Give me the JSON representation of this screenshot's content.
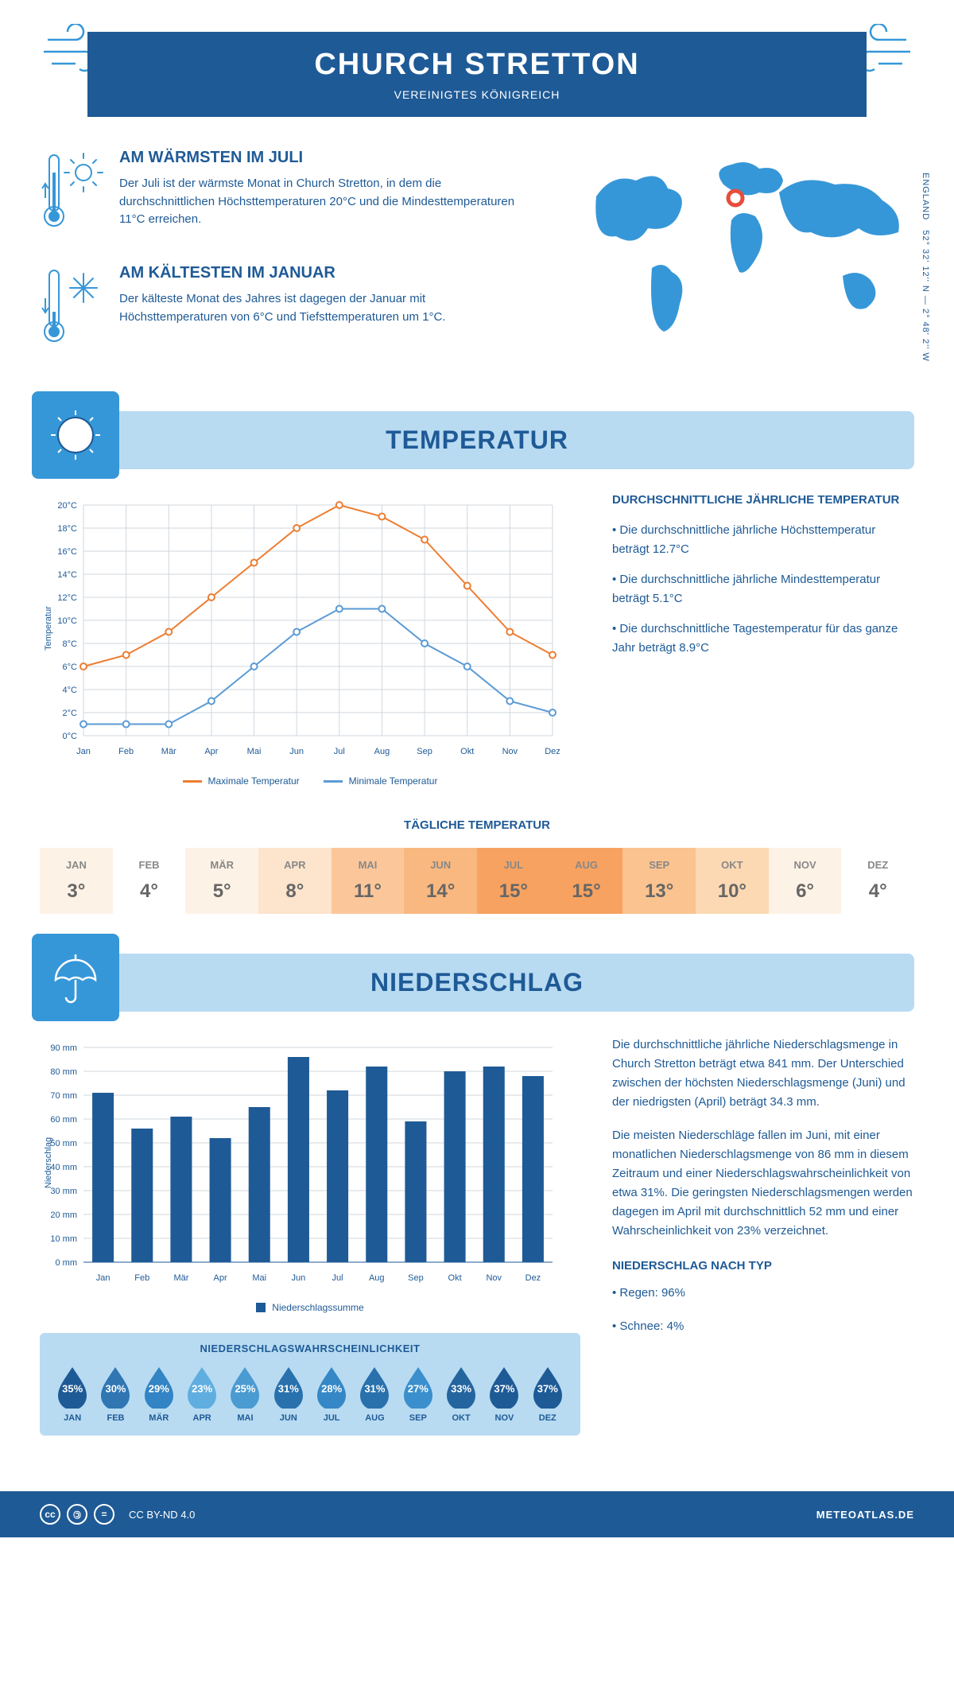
{
  "header": {
    "title": "CHURCH STRETTON",
    "subtitle": "VEREINIGTES KÖNIGREICH"
  },
  "coords": {
    "text": "52° 32' 12'' N — 2° 48' 2'' W",
    "region": "ENGLAND"
  },
  "colors": {
    "primary": "#1e5a96",
    "accent": "#3697d8",
    "light": "#b8dbf2",
    "max_line": "#ed7d31",
    "min_line": "#5b9bd5",
    "grid": "#d0d7de",
    "bar": "#1e5a96"
  },
  "warmest": {
    "title": "AM WÄRMSTEN IM JULI",
    "text": "Der Juli ist der wärmste Monat in Church Stretton, in dem die durchschnittlichen Höchsttemperaturen 20°C und die Mindesttemperaturen 11°C erreichen."
  },
  "coldest": {
    "title": "AM KÄLTESTEN IM JANUAR",
    "text": "Der kälteste Monat des Jahres ist dagegen der Januar mit Höchsttemperaturen von 6°C und Tiefsttemperaturen um 1°C."
  },
  "temp_section": {
    "title": "TEMPERATUR"
  },
  "temp_chart": {
    "type": "line",
    "months": [
      "Jan",
      "Feb",
      "Mär",
      "Apr",
      "Mai",
      "Jun",
      "Jul",
      "Aug",
      "Sep",
      "Okt",
      "Nov",
      "Dez"
    ],
    "max": [
      6,
      7,
      9,
      12,
      15,
      18,
      20,
      19,
      17,
      13,
      9,
      7
    ],
    "min": [
      1,
      1,
      1,
      3,
      6,
      9,
      11,
      11,
      8,
      6,
      3,
      2
    ],
    "ylabel": "Temperatur",
    "ylim": [
      0,
      20
    ],
    "ytick_step": 2,
    "max_color": "#ed7d31",
    "min_color": "#5b9bd5",
    "legend_max": "Maximale Temperatur",
    "legend_min": "Minimale Temperatur",
    "line_width": 2,
    "marker_size": 4
  },
  "temp_facts": {
    "title": "DURCHSCHNITTLICHE JÄHRLICHE TEMPERATUR",
    "items": [
      "• Die durchschnittliche jährliche Höchsttemperatur beträgt 12.7°C",
      "• Die durchschnittliche jährliche Mindesttemperatur beträgt 5.1°C",
      "• Die durchschnittliche Tagestemperatur für das ganze Jahr beträgt 8.9°C"
    ]
  },
  "daily": {
    "title": "TÄGLICHE TEMPERATUR",
    "months": [
      "JAN",
      "FEB",
      "MÄR",
      "APR",
      "MAI",
      "JUN",
      "JUL",
      "AUG",
      "SEP",
      "OKT",
      "NOV",
      "DEZ"
    ],
    "values": [
      "3°",
      "4°",
      "5°",
      "8°",
      "11°",
      "14°",
      "15°",
      "15°",
      "13°",
      "10°",
      "6°",
      "4°"
    ],
    "bg_colors": [
      "#fdf2e6",
      "#ffffff",
      "#fdf2e6",
      "#fde4cc",
      "#fbc79a",
      "#f9b87f",
      "#f7a260",
      "#f7a260",
      "#fac38f",
      "#fcd9b3",
      "#fdf2e6",
      "#ffffff"
    ]
  },
  "precip_section": {
    "title": "NIEDERSCHLAG"
  },
  "precip_chart": {
    "type": "bar",
    "months": [
      "Jan",
      "Feb",
      "Mär",
      "Apr",
      "Mai",
      "Jun",
      "Jul",
      "Aug",
      "Sep",
      "Okt",
      "Nov",
      "Dez"
    ],
    "values": [
      71,
      56,
      61,
      52,
      65,
      86,
      72,
      82,
      59,
      80,
      82,
      78
    ],
    "ylabel": "Niederschlag",
    "ylim": [
      0,
      90
    ],
    "ytick_step": 10,
    "bar_color": "#1e5a96",
    "bar_width": 0.55,
    "legend": "Niederschlagssumme"
  },
  "precip_text": {
    "p1": "Die durchschnittliche jährliche Niederschlagsmenge in Church Stretton beträgt etwa 841 mm. Der Unterschied zwischen der höchsten Niederschlagsmenge (Juni) und der niedrigsten (April) beträgt 34.3 mm.",
    "p2": "Die meisten Niederschläge fallen im Juni, mit einer monatlichen Niederschlagsmenge von 86 mm in diesem Zeitraum und einer Niederschlagswahrscheinlichkeit von etwa 31%. Die geringsten Niederschlagsmengen werden dagegen im April mit durchschnittlich 52 mm und einer Wahrscheinlichkeit von 23% verzeichnet.",
    "type_title": "NIEDERSCHLAG NACH TYP",
    "types": [
      "• Regen: 96%",
      "• Schnee: 4%"
    ]
  },
  "prob": {
    "title": "NIEDERSCHLAGSWAHRSCHEINLICHKEIT",
    "months": [
      "JAN",
      "FEB",
      "MÄR",
      "APR",
      "MAI",
      "JUN",
      "JUL",
      "AUG",
      "SEP",
      "OKT",
      "NOV",
      "DEZ"
    ],
    "pct": [
      "35%",
      "30%",
      "29%",
      "23%",
      "25%",
      "31%",
      "28%",
      "31%",
      "27%",
      "33%",
      "37%",
      "37%"
    ],
    "colors": [
      "#1e5a96",
      "#2f76b3",
      "#3284c4",
      "#60aee0",
      "#4a9bd1",
      "#2871ad",
      "#3587c6",
      "#2871ad",
      "#3a8fcc",
      "#24659f",
      "#1e5a96",
      "#1e5a96"
    ]
  },
  "footer": {
    "license": "CC BY-ND 4.0",
    "brand": "METEOATLAS.DE"
  }
}
